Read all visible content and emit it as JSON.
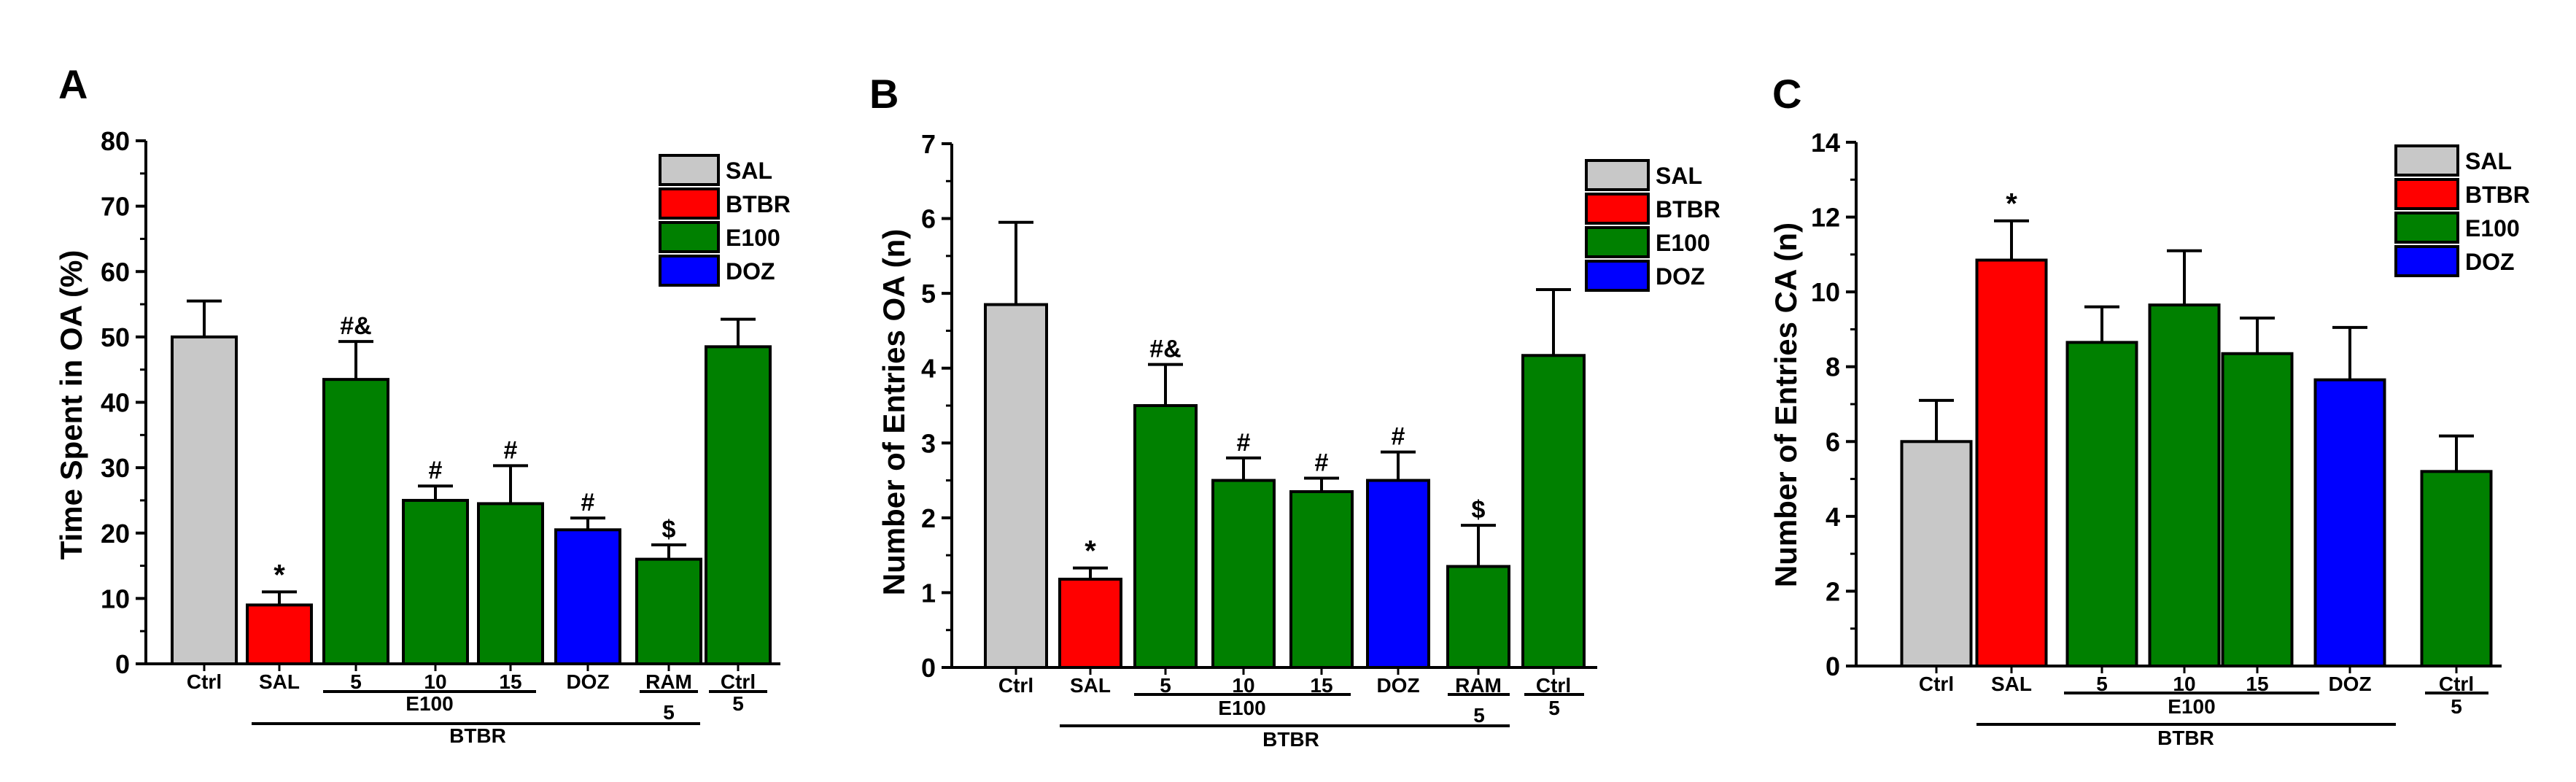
{
  "figure": {
    "colors": {
      "SAL": "#c8c8c8",
      "BTBR": "#ff0000",
      "E100": "#008000",
      "DOZ": "#0000ff"
    }
  },
  "chart_data": [
    {
      "type": "bar",
      "panel_label": "A",
      "title": "",
      "ylabel": "Time Spent in OA (%)",
      "ylim": [
        0,
        80
      ],
      "yticks": [
        0,
        10,
        20,
        30,
        40,
        50,
        60,
        70,
        80
      ],
      "categories": [
        "Ctrl",
        "SAL",
        "5",
        "10",
        "15",
        "DOZ",
        "RAM",
        "Ctrl"
      ],
      "values": [
        50,
        9,
        43.5,
        25,
        24.5,
        20.5,
        16,
        48.5
      ],
      "errors": [
        5.5,
        2,
        5.8,
        2.2,
        5.8,
        1.8,
        2.2,
        4.2
      ],
      "groups": [
        "SAL",
        "BTBR",
        "E100",
        "E100",
        "E100",
        "DOZ",
        "E100",
        "E100"
      ],
      "annotations": [
        "",
        "*",
        "#&",
        "#",
        "#",
        "#",
        "$",
        ""
      ],
      "legend": {
        "position": "top-right",
        "entries": [
          "SAL",
          "BTBR",
          "E100",
          "DOZ"
        ]
      },
      "dose_label": "E100",
      "sub_label_1": "5",
      "sub_label_2": "5",
      "strain_label": "BTBR"
    },
    {
      "type": "bar",
      "panel_label": "B",
      "title": "",
      "ylabel": "Number of Entries OA (n)",
      "ylim": [
        0,
        7
      ],
      "yticks": [
        0,
        1,
        2,
        3,
        4,
        5,
        6,
        7
      ],
      "categories": [
        "Ctrl",
        "SAL",
        "5",
        "10",
        "15",
        "DOZ",
        "RAM",
        "Ctrl"
      ],
      "values": [
        4.85,
        1.18,
        3.5,
        2.5,
        2.35,
        2.5,
        1.35,
        4.17
      ],
      "errors": [
        1.1,
        0.15,
        0.55,
        0.3,
        0.18,
        0.38,
        0.55,
        0.88
      ],
      "groups": [
        "SAL",
        "BTBR",
        "E100",
        "E100",
        "E100",
        "DOZ",
        "E100",
        "E100"
      ],
      "annotations": [
        "",
        "*",
        "#&",
        "#",
        "#",
        "#",
        "$",
        ""
      ],
      "legend": {
        "position": "top-right",
        "entries": [
          "SAL",
          "BTBR",
          "E100",
          "DOZ"
        ]
      },
      "dose_label": "E100",
      "sub_label_1": "5",
      "sub_label_2": "5",
      "strain_label": "BTBR"
    },
    {
      "type": "bar",
      "panel_label": "C",
      "title": "",
      "ylabel": "Number of Entries CA (n)",
      "ylim": [
        0,
        14
      ],
      "yticks": [
        0,
        2,
        4,
        6,
        8,
        10,
        12,
        14
      ],
      "categories": [
        "Ctrl",
        "SAL",
        "5",
        "10",
        "15",
        "DOZ",
        "Ctrl"
      ],
      "values": [
        6,
        10.85,
        8.65,
        9.65,
        8.35,
        7.65,
        5.2
      ],
      "errors": [
        1.1,
        1.05,
        0.95,
        1.45,
        0.95,
        1.4,
        0.95
      ],
      "groups": [
        "SAL",
        "BTBR",
        "E100",
        "E100",
        "E100",
        "DOZ",
        "E100"
      ],
      "annotations": [
        "",
        "*",
        "",
        "",
        "",
        "",
        ""
      ],
      "legend": {
        "position": "top-right",
        "entries": [
          "SAL",
          "BTBR",
          "E100",
          "DOZ"
        ]
      },
      "dose_label": "E100",
      "sub_label_1": "5",
      "strain_label": "BTBR"
    }
  ]
}
